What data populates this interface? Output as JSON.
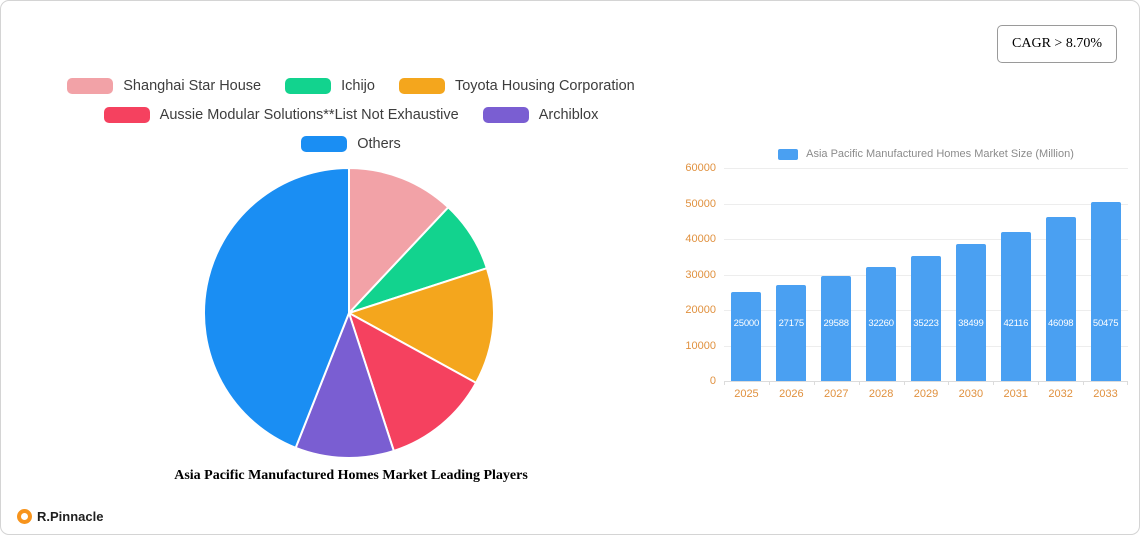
{
  "badge": {
    "text": "CAGR > 8.70%"
  },
  "logo": {
    "text": "R.Pinnacle",
    "color": "#f7941d"
  },
  "chart_data": [
    {
      "type": "pie",
      "title": "Asia Pacific Manufactured Homes Market Leading Players",
      "labels": [
        "Shanghai Star House",
        "Ichijo",
        "Toyota Housing Corporation",
        "Aussie Modular Solutions**List Not Exhaustive",
        "Archiblox",
        "Others"
      ],
      "values": [
        12,
        8,
        13,
        12,
        11,
        44
      ],
      "colors": [
        "#f2a2a7",
        "#12d38e",
        "#f4a61d",
        "#f5415f",
        "#7a5ed2",
        "#1a8ef3"
      ],
      "legend_position": "top",
      "legend_rows": [
        [
          0,
          1,
          2
        ],
        [
          3,
          4
        ],
        [
          5
        ]
      ],
      "start_angle_deg": 0,
      "direction": "clockwise"
    },
    {
      "type": "bar",
      "legend": [
        "Asia Pacific Manufactured Homes Market Size (Million)"
      ],
      "categories": [
        "2025",
        "2026",
        "2027",
        "2028",
        "2029",
        "2030",
        "2031",
        "2032",
        "2033"
      ],
      "values": [
        25000,
        27175,
        29588,
        32260,
        35223,
        38499,
        42116,
        46098,
        50475
      ],
      "ylim": [
        0,
        60000
      ],
      "yticks": [
        0,
        10000,
        20000,
        30000,
        40000,
        50000,
        60000
      ],
      "grid": true,
      "bar_color": "#4aa0f2",
      "axis_label_color": "#e0913f",
      "value_label_color": "#ffffff",
      "legend_position": "top"
    }
  ]
}
